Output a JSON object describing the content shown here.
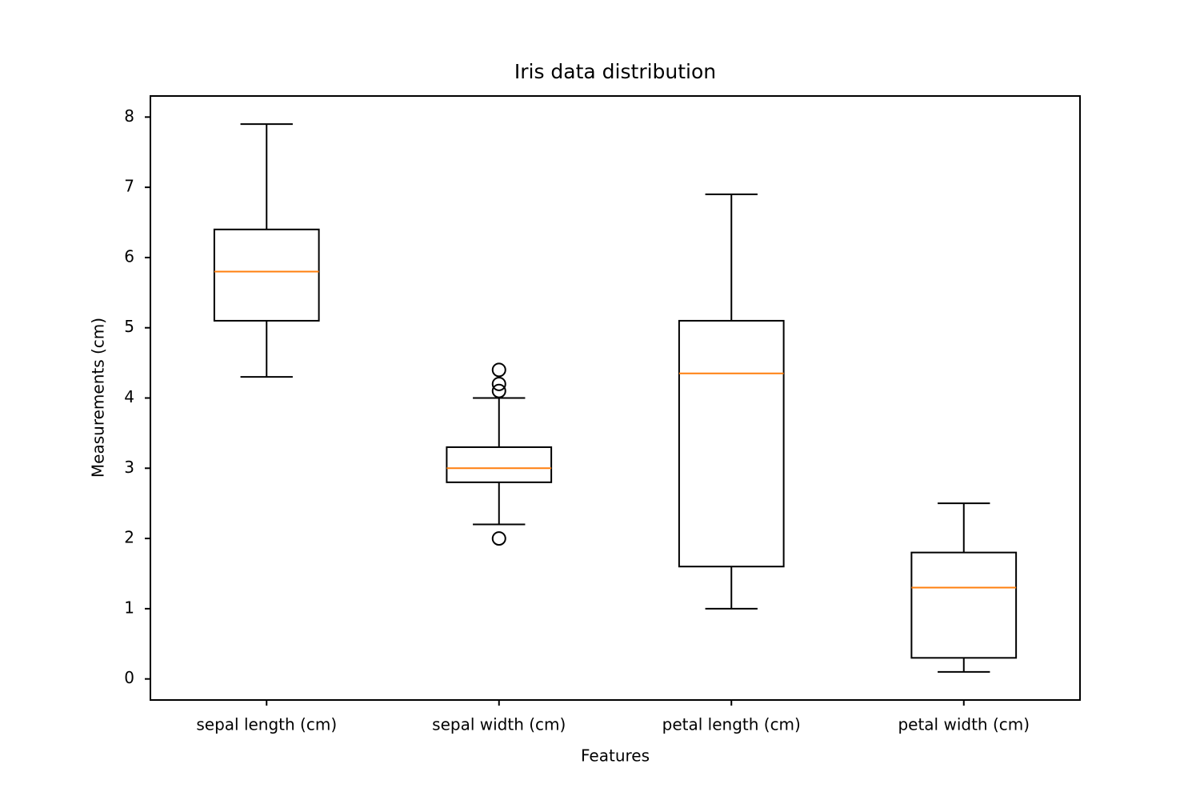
{
  "chart_data": {
    "type": "box",
    "title": "Iris data distribution",
    "x_label": "Features",
    "y_label": "Measurements (cm)",
    "categories": [
      "sepal length (cm)",
      "sepal width (cm)",
      "petal length (cm)",
      "petal width (cm)"
    ],
    "boxes": [
      {
        "whislo": 4.3,
        "q1": 5.1,
        "med": 5.8,
        "q3": 6.4,
        "whishi": 7.9,
        "fliers": []
      },
      {
        "whislo": 2.2,
        "q1": 2.8,
        "med": 3.0,
        "q3": 3.3,
        "whishi": 4.0,
        "fliers": [
          4.4,
          4.1,
          4.2,
          2.0
        ]
      },
      {
        "whislo": 1.0,
        "q1": 1.6,
        "med": 4.35,
        "q3": 5.1,
        "whishi": 6.9,
        "fliers": []
      },
      {
        "whislo": 0.1,
        "q1": 0.3,
        "med": 1.3,
        "q3": 1.8,
        "whishi": 2.5,
        "fliers": []
      }
    ],
    "color": "#000000",
    "median_color": "#ff7f0e",
    "ylim": [
      -0.3,
      8.3
    ],
    "yticks": [
      0,
      1,
      2,
      3,
      4,
      5,
      6,
      7,
      8
    ],
    "grid": false
  }
}
